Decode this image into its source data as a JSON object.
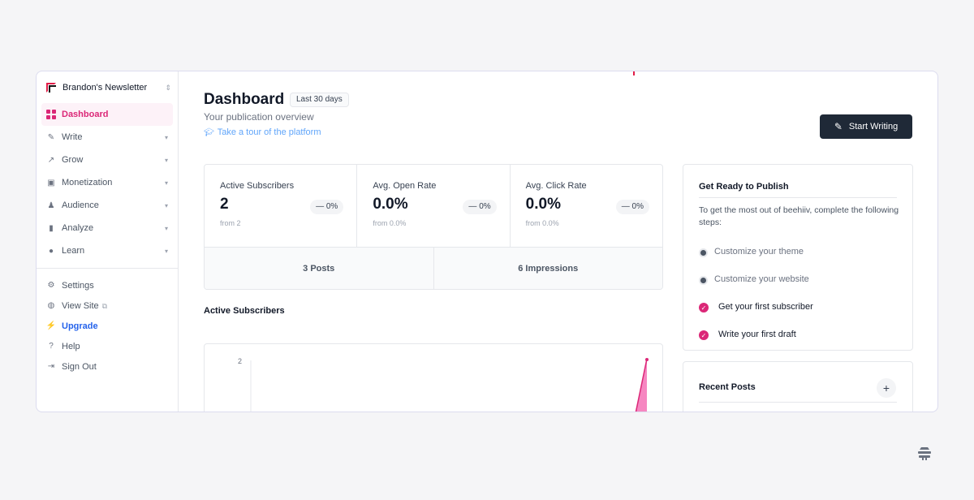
{
  "sidebar": {
    "publication": "Brandon's Newsletter",
    "items": [
      {
        "label": "Dashboard",
        "icon": "grid-icon",
        "active": true
      },
      {
        "label": "Write",
        "icon": "pencil-icon"
      },
      {
        "label": "Grow",
        "icon": "trending-icon"
      },
      {
        "label": "Monetization",
        "icon": "money-icon"
      },
      {
        "label": "Audience",
        "icon": "users-icon"
      },
      {
        "label": "Analyze",
        "icon": "bar-chart-icon"
      },
      {
        "label": "Learn",
        "icon": "lightbulb-icon"
      }
    ],
    "bottom": [
      {
        "label": "Settings",
        "icon": "gear-icon"
      },
      {
        "label": "View Site",
        "icon": "globe-icon"
      },
      {
        "label": "Upgrade",
        "icon": "bolt-icon"
      },
      {
        "label": "Help",
        "icon": "help-icon"
      },
      {
        "label": "Sign Out",
        "icon": "sign-out-icon"
      }
    ]
  },
  "header": {
    "title": "Dashboard",
    "badge": "Last 30 days",
    "subtitle": "Your publication overview",
    "tour": "Take a tour of the platform",
    "start_writing": "Start Writing"
  },
  "stats": [
    {
      "label": "Active Subscribers",
      "value": "2",
      "from": "from 2",
      "change": "— 0%"
    },
    {
      "label": "Avg. Open Rate",
      "value": "0.0%",
      "from": "from 0.0%",
      "change": "— 0%"
    },
    {
      "label": "Avg. Click Rate",
      "value": "0.0%",
      "from": "from 0.0%",
      "change": "— 0%"
    }
  ],
  "totals": {
    "posts": "3 Posts",
    "impressions": "6 Impressions"
  },
  "chart": {
    "title": "Active Subscribers",
    "y_tick": "2",
    "accent": "#db2777"
  },
  "publish_panel": {
    "title": "Get Ready to Publish",
    "description": "To get the most out of beehiiv, complete the following steps:",
    "steps": [
      {
        "label": "Customize your theme",
        "done": false
      },
      {
        "label": "Customize your website",
        "done": false
      },
      {
        "label": "Get your first subscriber",
        "done": true
      },
      {
        "label": "Write your first draft",
        "done": true
      }
    ]
  },
  "recent_posts": {
    "title": "Recent Posts",
    "add": "+"
  }
}
